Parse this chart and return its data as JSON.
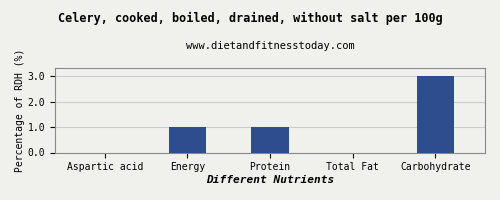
{
  "title": "Celery, cooked, boiled, drained, without salt per 100g",
  "subtitle": "www.dietandfitnesstoday.com",
  "categories": [
    "Aspartic acid",
    "Energy",
    "Protein",
    "Total Fat",
    "Carbohydrate"
  ],
  "values": [
    0.0,
    1.0,
    1.0,
    0.0,
    3.0
  ],
  "bar_color": "#2e4d8e",
  "xlabel": "Different Nutrients",
  "ylabel": "Percentage of RDH (%)",
  "ylim": [
    0,
    3.3
  ],
  "yticks": [
    0.0,
    1.0,
    2.0,
    3.0
  ],
  "background_color": "#f0f0ec",
  "plot_bg_color": "#f0f0ec",
  "border_color": "#888888",
  "grid_color": "#cccccc",
  "title_fontsize": 8.5,
  "subtitle_fontsize": 7.5,
  "xlabel_fontsize": 8,
  "ylabel_fontsize": 7,
  "tick_fontsize": 7
}
